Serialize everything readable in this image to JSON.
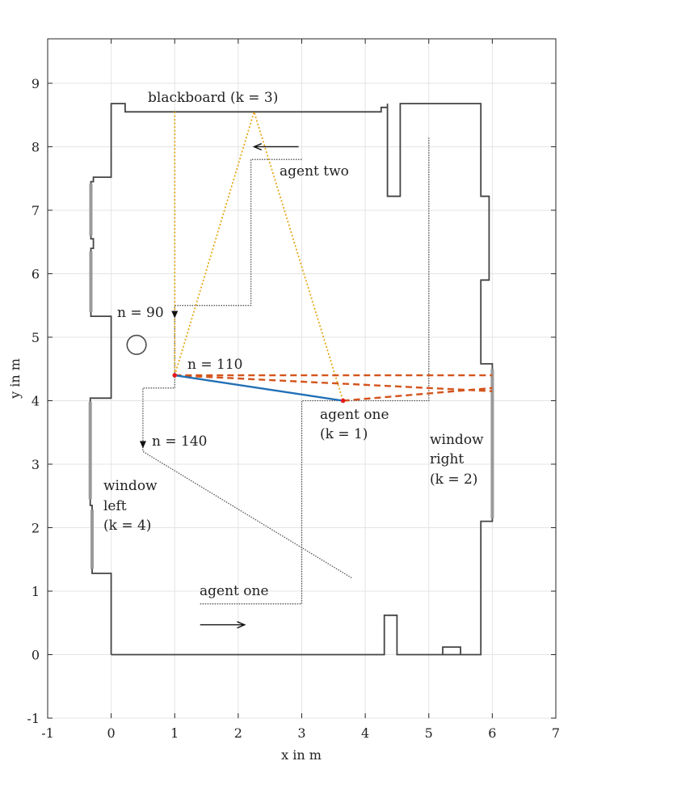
{
  "chart_data": {
    "type": "scatter",
    "title": "",
    "xlabel": "x in m",
    "ylabel": "y in m",
    "xlim": [
      -1,
      7
    ],
    "ylim": [
      -1,
      9.7
    ],
    "grid": true,
    "xticks": [
      "-1",
      "0",
      "1",
      "2",
      "3",
      "4",
      "5",
      "6",
      "7"
    ],
    "yticks": [
      "-1",
      "0",
      "1",
      "2",
      "3",
      "4",
      "5",
      "6",
      "7",
      "8",
      "9"
    ],
    "floor_plan": [
      [
        [
          0,
          0
        ],
        [
          0,
          0.65
        ],
        [
          0,
          1.28
        ],
        [
          -0.3,
          1.28
        ],
        [
          -0.3,
          2.35
        ],
        [
          -0.33,
          2.35
        ],
        [
          -0.33,
          4.04
        ],
        [
          0,
          4.04
        ],
        [
          0,
          4.1
        ],
        [
          0,
          5.33
        ],
        [
          -0.32,
          5.33
        ],
        [
          -0.32,
          6.4
        ],
        [
          -0.28,
          6.4
        ],
        [
          -0.28,
          6.55
        ],
        [
          -0.32,
          6.55
        ],
        [
          -0.32,
          7.45
        ],
        [
          -0.28,
          7.45
        ],
        [
          -0.28,
          7.52
        ],
        [
          0,
          7.52
        ],
        [
          0,
          7.6
        ],
        [
          0,
          8.68
        ],
        [
          0.22,
          8.68
        ],
        [
          0.22,
          8.55
        ],
        [
          4.25,
          8.55
        ],
        [
          4.25,
          8.62
        ],
        [
          4.35,
          8.62
        ],
        [
          4.35,
          8.68
        ],
        [
          4.35,
          7.22
        ],
        [
          4.55,
          7.22
        ],
        [
          4.55,
          8.68
        ],
        [
          5.82,
          8.68
        ],
        [
          5.82,
          7.22
        ],
        [
          5.95,
          7.22
        ],
        [
          5.95,
          5.9
        ],
        [
          5.82,
          5.9
        ],
        [
          5.82,
          4.58
        ],
        [
          6.0,
          4.58
        ],
        [
          6.0,
          2.1
        ],
        [
          5.82,
          2.1
        ],
        [
          5.82,
          0.0
        ],
        [
          4.5,
          0.0
        ],
        [
          4.5,
          0.62
        ],
        [
          4.3,
          0.62
        ],
        [
          4.3,
          0.0
        ],
        [
          0,
          0
        ]
      ],
      [
        [
          5.22,
          0.0
        ],
        [
          5.22,
          0.12
        ],
        [
          5.5,
          0.12
        ],
        [
          5.5,
          0.0
        ]
      ]
    ],
    "window_segments": [
      [
        [
          -0.3,
          1.35
        ],
        [
          -0.3,
          2.28
        ]
      ],
      [
        [
          -0.33,
          2.45
        ],
        [
          -0.33,
          3.98
        ]
      ],
      [
        [
          -0.32,
          5.4
        ],
        [
          -0.32,
          6.35
        ]
      ],
      [
        [
          -0.32,
          6.6
        ],
        [
          -0.32,
          7.42
        ]
      ],
      [
        [
          6.0,
          2.15
        ],
        [
          6.0,
          4.5
        ]
      ]
    ],
    "obstacle_circle": {
      "x": 0.4,
      "y": 4.88,
      "r": 0.15
    },
    "trajectory_agent_one": [
      [
        1.4,
        0.8
      ],
      [
        3.0,
        0.8
      ],
      [
        3.0,
        4.0
      ],
      [
        5.0,
        4.0
      ],
      [
        5.0,
        8.15
      ]
    ],
    "trajectory_agent_two": [
      [
        3.0,
        7.8
      ],
      [
        2.2,
        7.8
      ],
      [
        2.2,
        5.5
      ],
      [
        1.0,
        5.5
      ],
      [
        1.0,
        4.2
      ],
      [
        0.5,
        4.2
      ],
      [
        0.5,
        3.2
      ],
      [
        3.8,
        1.2
      ]
    ],
    "agent_one_position": {
      "x": 3.65,
      "y": 4.0
    },
    "agent_two_position": {
      "x": 1.0,
      "y": 4.4
    },
    "los_path_blue": [
      [
        1.0,
        4.4
      ],
      [
        3.65,
        4.0
      ]
    ],
    "specular_paths_orange": [
      [
        [
          1.0,
          4.4
        ],
        [
          1.0,
          8.55
        ]
      ],
      [
        [
          1.0,
          4.4
        ],
        [
          2.25,
          8.55
        ],
        [
          3.65,
          4.0
        ]
      ]
    ],
    "specular_paths_red": [
      [
        [
          1.0,
          4.4
        ],
        [
          6.0,
          4.4
        ]
      ],
      [
        [
          1.0,
          4.4
        ],
        [
          6.0,
          4.15
        ]
      ],
      [
        [
          3.65,
          4.0
        ],
        [
          6.0,
          4.2
        ]
      ]
    ],
    "arrow_agent_one": [
      [
        1.4,
        0.47
      ],
      [
        2.1,
        0.47
      ]
    ],
    "arrow_agent_two": [
      [
        2.95,
        8.0
      ],
      [
        2.25,
        8.0
      ]
    ],
    "time_markers": [
      {
        "label": "n = 90",
        "x": 1.0,
        "y": 5.35
      },
      {
        "label": "n = 110",
        "x": 1.0,
        "y": 4.4
      },
      {
        "label": "n = 140",
        "x": 0.5,
        "y": 3.3
      }
    ],
    "annotations": {
      "blackboard": "blackboard (k = 3)",
      "agent_two": "agent two",
      "n90": "n = 90",
      "n110": "n = 110",
      "n140": "n = 140",
      "agent_one_label": "agent one",
      "agent_one_k": "(k = 1)",
      "window_right_1": "window",
      "window_right_2": "right",
      "window_right_3": "(k = 2)",
      "window_left_1": "window",
      "window_left_2": "left",
      "window_left_3": "(k = 4)",
      "agent_one_bottom": "agent one"
    },
    "colors": {
      "wall": "#444444",
      "window": "#9a9a9a",
      "trajectory": "#555555",
      "los": "#1f6fb5",
      "orange": "#e6a817",
      "red": "#d4541c",
      "agent_dot": "#e41a1c",
      "grid": "#e4e4e4"
    }
  }
}
